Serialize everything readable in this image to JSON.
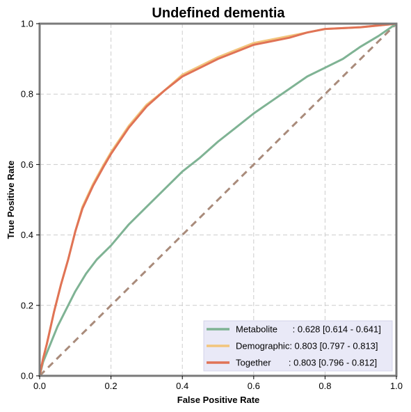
{
  "chart_data": {
    "type": "line",
    "title": "Undefined dementia",
    "xlabel": "False Positive Rate",
    "ylabel": "True Positive Rate",
    "xlim": [
      0,
      1
    ],
    "ylim": [
      0,
      1
    ],
    "xticks": [
      0.0,
      0.2,
      0.4,
      0.6,
      0.8,
      1.0
    ],
    "yticks": [
      0.0,
      0.2,
      0.4,
      0.6,
      0.8,
      1.0
    ],
    "xtick_labels": [
      "0.0",
      "0.2",
      "0.4",
      "0.6",
      "0.8",
      "1.0"
    ],
    "ytick_labels": [
      "0.0",
      "0.2",
      "0.4",
      "0.6",
      "0.8",
      "1.0"
    ],
    "grid": true,
    "legend_position": "bottom-right",
    "series": [
      {
        "name": "Metabolite",
        "legend_label": "Metabolite      : 0.628 [0.614 - 0.641]",
        "color": "#7fb394",
        "x": [
          0.0,
          0.01,
          0.03,
          0.05,
          0.07,
          0.1,
          0.13,
          0.16,
          0.2,
          0.25,
          0.3,
          0.35,
          0.4,
          0.45,
          0.5,
          0.55,
          0.6,
          0.65,
          0.7,
          0.75,
          0.8,
          0.85,
          0.9,
          0.95,
          1.0
        ],
        "y": [
          0.0,
          0.04,
          0.09,
          0.14,
          0.18,
          0.24,
          0.29,
          0.33,
          0.37,
          0.43,
          0.48,
          0.53,
          0.58,
          0.62,
          0.665,
          0.705,
          0.745,
          0.78,
          0.815,
          0.85,
          0.875,
          0.9,
          0.935,
          0.965,
          1.0
        ]
      },
      {
        "name": "Demographic",
        "legend_label": "Demographic: 0.803 [0.797 - 0.813]",
        "color": "#f2c57c",
        "x": [
          0.0,
          0.01,
          0.02,
          0.04,
          0.06,
          0.08,
          0.1,
          0.12,
          0.15,
          0.18,
          0.2,
          0.25,
          0.3,
          0.35,
          0.4,
          0.45,
          0.5,
          0.55,
          0.6,
          0.7,
          0.75,
          0.8,
          0.9,
          1.0
        ],
        "y": [
          0.0,
          0.05,
          0.09,
          0.18,
          0.26,
          0.33,
          0.41,
          0.48,
          0.545,
          0.6,
          0.635,
          0.71,
          0.77,
          0.81,
          0.855,
          0.88,
          0.905,
          0.925,
          0.945,
          0.965,
          0.975,
          0.985,
          0.99,
          1.0
        ]
      },
      {
        "name": "Together",
        "legend_label": "Together       : 0.803 [0.796 - 0.812]",
        "color": "#e07356",
        "x": [
          0.0,
          0.01,
          0.02,
          0.04,
          0.06,
          0.08,
          0.1,
          0.12,
          0.15,
          0.18,
          0.2,
          0.25,
          0.3,
          0.35,
          0.4,
          0.45,
          0.5,
          0.55,
          0.6,
          0.7,
          0.75,
          0.8,
          0.9,
          1.0
        ],
        "y": [
          0.0,
          0.05,
          0.09,
          0.18,
          0.26,
          0.33,
          0.41,
          0.475,
          0.54,
          0.595,
          0.63,
          0.705,
          0.765,
          0.81,
          0.85,
          0.875,
          0.9,
          0.92,
          0.94,
          0.96,
          0.975,
          0.985,
          0.99,
          1.0
        ]
      }
    ],
    "reference_line": {
      "style": "dashed",
      "color": "#a98b7b",
      "x": [
        0,
        1
      ],
      "y": [
        0,
        1
      ]
    },
    "colors": {
      "legend_background": "#e9e9f7",
      "grid": "#cccccc",
      "frame": "#7a7a7a"
    }
  }
}
